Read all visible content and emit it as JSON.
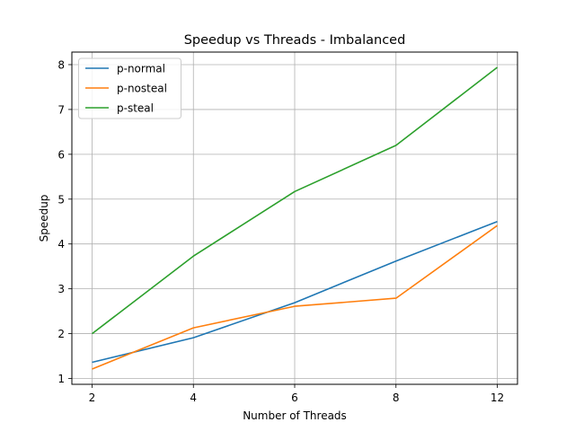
{
  "chart_data": {
    "type": "line",
    "title": "Speedup vs Threads - Imbalanced",
    "xlabel": "Number of Threads",
    "ylabel": "Speedup",
    "categories": [
      "2",
      "4",
      "6",
      "8",
      "12"
    ],
    "xticks": [
      "2",
      "4",
      "6",
      "8",
      "12"
    ],
    "yticks": [
      1,
      2,
      3,
      4,
      5,
      6,
      7,
      8
    ],
    "ylim": [
      0.87,
      8.28
    ],
    "grid": true,
    "legend_position": "top-left",
    "series": [
      {
        "name": "p-normal",
        "color": "#1f77b4",
        "values": [
          1.36,
          1.91,
          2.69,
          3.62,
          4.5
        ]
      },
      {
        "name": "p-nosteal",
        "color": "#ff7f0e",
        "values": [
          1.21,
          2.13,
          2.61,
          2.79,
          4.41
        ]
      },
      {
        "name": "p-steal",
        "color": "#2ca02c",
        "values": [
          2.0,
          3.73,
          5.17,
          6.2,
          7.94
        ]
      }
    ]
  }
}
